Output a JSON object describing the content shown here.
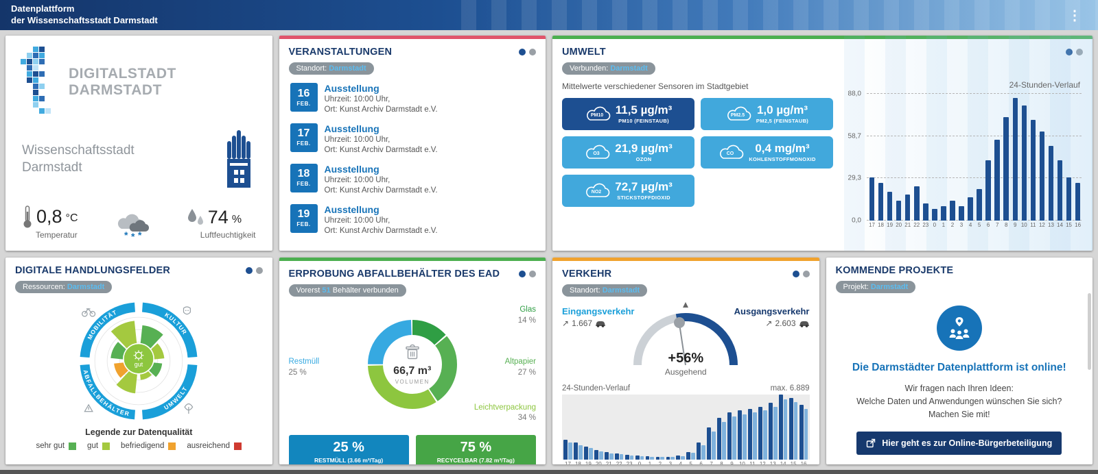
{
  "colors": {
    "navy": "#16396e",
    "blue": "#1773b8",
    "sky": "#41a8dc",
    "ring_blue": "#1a9fd9",
    "bar_navy": "#1d4f91",
    "bar_light": "#7fb2dd",
    "accent_red": "#e0556b",
    "accent_green": "#4caf50",
    "accent_orange": "#f0a22e",
    "badge_value_blue": "#5bbcf0",
    "green_light": "#8dc63f"
  },
  "header": {
    "title_line1": "Datenplattform",
    "title_line2": "der Wissenschaftsstadt Darmstadt",
    "menu_icon": "⋮"
  },
  "branding": {
    "logo_line1": "DIGITALSTADT",
    "logo_line2": "DARMSTADT",
    "subtitle_line1": "Wissenschaftsstadt",
    "subtitle_line2": "Darmstadt",
    "temperature_value": "0,8",
    "temperature_unit": "°C",
    "temperature_label": "Temperatur",
    "humidity_value": "74",
    "humidity_unit": "%",
    "humidity_label": "Luftfeuchtigkeit"
  },
  "events": {
    "title": "VERANSTALTUNGEN",
    "badge_label": "Standort:",
    "badge_value": "Darmstadt",
    "items": [
      {
        "day": "16",
        "month": "FEB.",
        "title": "Ausstellung",
        "time": "Uhrzeit: 10:00 Uhr,",
        "location": "Ort: Kunst Archiv Darmstadt e.V."
      },
      {
        "day": "17",
        "month": "FEB.",
        "title": "Ausstellung",
        "time": "Uhrzeit: 10:00 Uhr,",
        "location": "Ort: Kunst Archiv Darmstadt e.V."
      },
      {
        "day": "18",
        "month": "FEB.",
        "title": "Ausstellung",
        "time": "Uhrzeit: 10:00 Uhr,",
        "location": "Ort: Kunst Archiv Darmstadt e.V."
      },
      {
        "day": "19",
        "month": "FEB.",
        "title": "Ausstellung",
        "time": "Uhrzeit: 10:00 Uhr,",
        "location": "Ort: Kunst Archiv Darmstadt e.V."
      }
    ]
  },
  "umwelt": {
    "title": "UMWELT",
    "badge_label": "Verbunden:",
    "badge_value": "Darmstadt",
    "subtitle": "Mittelwerte verschiedener Sensoren im Stadtgebiet",
    "sensors": [
      {
        "icon_label": "PM10",
        "value": "11,5 µg/m³",
        "label": "PM10 (FEINSTAUB)",
        "color": "#1d4f91"
      },
      {
        "icon_label": "PM2.5",
        "value": "1,0 µg/m³",
        "label": "PM2,5 (FEINSTAUB)",
        "color": "#41a8dc"
      },
      {
        "icon_label": "O3",
        "value": "21,9 µg/m³",
        "label": "OZON",
        "color": "#41a8dc"
      },
      {
        "icon_label": "CO",
        "value": "0,4 mg/m³",
        "label": "KOHLENSTOFFMONOXID",
        "color": "#41a8dc"
      },
      {
        "icon_label": "NO2",
        "value": "72,7 µg/m³",
        "label": "STICKSTOFFDIOXID",
        "color": "#41a8dc"
      }
    ]
  },
  "handlungsfelder": {
    "title": "DIGITALE HANDLUNGSFELDER",
    "badge_label": "Ressourcen:",
    "badge_value": "Darmstadt",
    "legend": {
      "title": "Legende zur Datenqualität",
      "items": [
        {
          "label": "sehr gut",
          "color": "#57b053"
        },
        {
          "label": "gut",
          "color": "#a4c93f"
        },
        {
          "label": "befriedigend",
          "color": "#f0a22e"
        },
        {
          "label": "ausreichend",
          "color": "#cf3a30"
        }
      ]
    }
  },
  "ead": {
    "title": "ERPROBUNG ABFALLBEHÄLTER DES EAD",
    "badge_prefix": "Vorerst",
    "badge_highlight": "51",
    "badge_suffix": "Behälter verbunden",
    "buttons": [
      {
        "value": "25 %",
        "label": "RESTMÜLL (3.66 m³/Tag)",
        "color": "#1286be"
      },
      {
        "value": "75 %",
        "label": "RECYCELBAR (7.82 m³/Tag)",
        "color": "#46a546"
      }
    ]
  },
  "verkehr": {
    "title": "VERKEHR",
    "badge_label": "Standort:",
    "badge_value": "Darmstadt",
    "in_label": "Eingangsverkehr",
    "in_arrow": "↗",
    "in_value": "1.667",
    "out_label": "Ausgangsverkehr",
    "out_arrow": "↗",
    "out_value": "2.603"
  },
  "projekte": {
    "title": "KOMMENDE PROJEKTE",
    "badge_label": "Projekt:",
    "badge_value": "Darmstadt",
    "headline": "Die Darmstädter Datenplattform ist online!",
    "body_line1": "Wir fragen nach Ihren Ideen:",
    "body_line2": "Welche Daten und Anwendungen wünschen Sie sich?",
    "body_line3": "Machen Sie mit!",
    "button_label": "Hier geht es zur Online-Bürgerbeteiligung"
  },
  "chart_data": [
    {
      "id": "umwelt-24h",
      "type": "bar",
      "title": "24-Stunden-Verlauf",
      "categories": [
        "17",
        "18",
        "19",
        "20",
        "21",
        "22",
        "23",
        "0",
        "1",
        "2",
        "3",
        "4",
        "5",
        "6",
        "7",
        "8",
        "9",
        "10",
        "11",
        "12",
        "13",
        "14",
        "15",
        "16"
      ],
      "values": [
        30,
        26,
        20,
        14,
        18,
        24,
        12,
        8,
        10,
        14,
        10,
        16,
        22,
        42,
        56,
        72,
        85,
        80,
        70,
        62,
        52,
        42,
        30,
        26
      ],
      "ylim": [
        0,
        88
      ],
      "yticks": [
        88,
        58.7,
        29.3,
        0
      ],
      "ytick_labels": [
        "88,0",
        "58,7",
        "29,3",
        "0,0"
      ],
      "bar_color": "#1d4f91",
      "grid": "dashed",
      "legend": "none"
    },
    {
      "id": "verkehr-24h",
      "type": "bar",
      "title": "24-Stunden-Verlauf",
      "max_label": "max. 6.889",
      "categories": [
        "17",
        "18",
        "19",
        "20",
        "21",
        "22",
        "23",
        "0",
        "1",
        "2",
        "3",
        "4",
        "5",
        "6",
        "7",
        "8",
        "9",
        "10",
        "11",
        "12",
        "13",
        "14",
        "15",
        "16"
      ],
      "series": [
        {
          "name": "Eingangsverkehr",
          "color": "#1d4f91",
          "values": [
            2100,
            1800,
            1400,
            1000,
            800,
            650,
            500,
            420,
            350,
            300,
            320,
            400,
            800,
            1800,
            3400,
            4400,
            5000,
            5200,
            5400,
            5600,
            6000,
            6889,
            6500,
            5800
          ]
        },
        {
          "name": "Ausgangsverkehr",
          "color": "#7fb2dd",
          "values": [
            1800,
            1500,
            1200,
            850,
            680,
            550,
            420,
            360,
            300,
            260,
            280,
            350,
            700,
            1500,
            3000,
            4000,
            4600,
            4800,
            5000,
            5200,
            5600,
            6400,
            6100,
            5400
          ]
        }
      ],
      "ylim": [
        0,
        6889
      ],
      "grid": "off",
      "legend": "none"
    },
    {
      "id": "abfall-donut",
      "type": "pie",
      "center_value": "66,7 m³",
      "center_label": "VOLUMEN",
      "segments": [
        {
          "label": "Glas",
          "pct": 14,
          "pct_label": "14 %",
          "color": "#2f9e44"
        },
        {
          "label": "Altpapier",
          "pct": 27,
          "pct_label": "27 %",
          "color": "#57b053"
        },
        {
          "label": "Leichtverpackung",
          "pct": 34,
          "pct_label": "34 %",
          "color": "#8dc63f"
        },
        {
          "label": "Restmüll",
          "pct": 25,
          "pct_label": "25 %",
          "color": "#36a9e1"
        }
      ]
    },
    {
      "id": "verkehr-gauge",
      "type": "gauge",
      "value_pct": 56,
      "label": "+56%",
      "sublabel": "Ausgehend"
    },
    {
      "id": "handlungsfelder-radial",
      "type": "radial",
      "center_label": "gut",
      "sectors": [
        {
          "label": "MOBILITÄT"
        },
        {
          "label": "KULTUR"
        },
        {
          "label": "UMWELT"
        },
        {
          "label": "ABFALLBEHÄLTER"
        }
      ],
      "wedges": [
        {
          "from": 96,
          "to": 133,
          "r": 72,
          "quality": "gut"
        },
        {
          "from": 137,
          "to": 174,
          "r": 50,
          "quality": "sehr gut"
        },
        {
          "from": 6,
          "to": 43,
          "r": 46,
          "quality": "gut"
        },
        {
          "from": 47,
          "to": 84,
          "r": 64,
          "quality": "sehr gut"
        },
        {
          "from": 276,
          "to": 313,
          "r": 34,
          "quality": "gut"
        },
        {
          "from": 317,
          "to": 354,
          "r": 42,
          "quality": "sehr gut"
        },
        {
          "from": 186,
          "to": 223,
          "r": 44,
          "quality": "befriedigend"
        },
        {
          "from": 227,
          "to": 264,
          "r": 58,
          "quality": "gut"
        }
      ]
    }
  ]
}
